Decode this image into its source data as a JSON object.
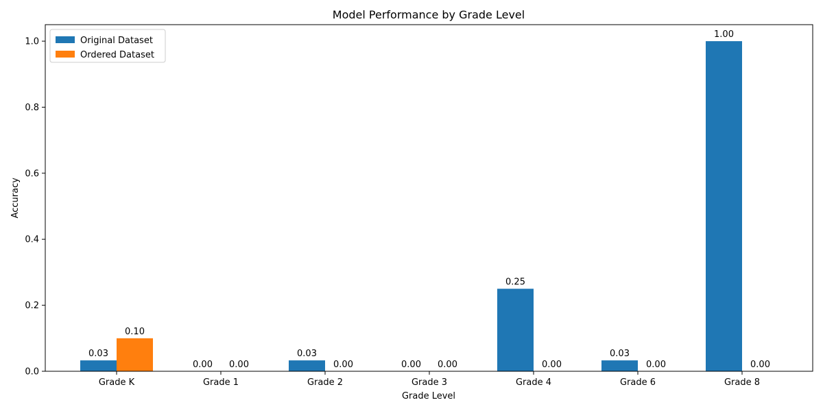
{
  "chart_data": {
    "type": "bar",
    "title": "Model Performance by Grade Level",
    "xlabel": "Grade Level",
    "ylabel": "Accuracy",
    "categories": [
      "Grade K",
      "Grade 1",
      "Grade 2",
      "Grade 3",
      "Grade 4",
      "Grade 6",
      "Grade 8"
    ],
    "series": [
      {
        "name": "Original Dataset",
        "color": "#1f77b4",
        "values": [
          0.033,
          0.0,
          0.033,
          0.0,
          0.25,
          0.033,
          1.0
        ],
        "labels": [
          "0.03",
          "0.00",
          "0.03",
          "0.00",
          "0.25",
          "0.03",
          "1.00"
        ]
      },
      {
        "name": "Ordered Dataset",
        "color": "#ff7f0e",
        "values": [
          0.1,
          0.0,
          0.0,
          0.0,
          0.0,
          0.0,
          0.0
        ],
        "labels": [
          "0.10",
          "0.00",
          "0.00",
          "0.00",
          "0.00",
          "0.00",
          "0.00"
        ]
      }
    ],
    "ylim": [
      0,
      1.05
    ],
    "yticks": [
      "0.0",
      "0.2",
      "0.4",
      "0.6",
      "0.8",
      "1.0"
    ],
    "legend_position": "top-left",
    "grid": false
  }
}
